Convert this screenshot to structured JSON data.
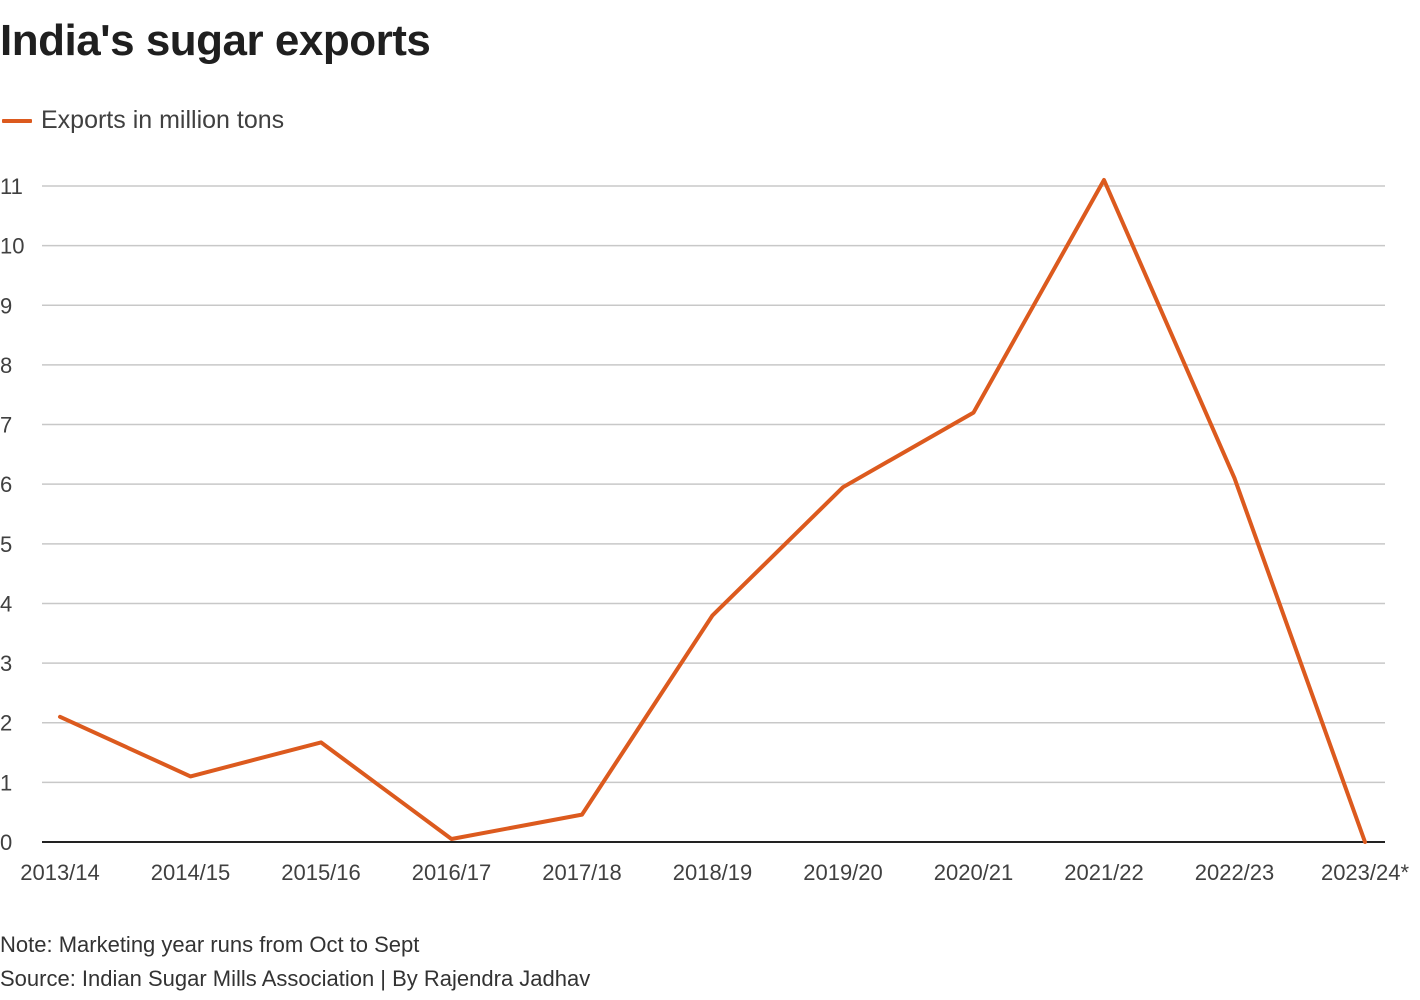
{
  "title": "India's sugar exports",
  "legend_label": "Exports in million tons",
  "colors": {
    "line": "#dc5a1e",
    "grid": "#c8c8c8",
    "axis": "#222222"
  },
  "note": "Note: Marketing year runs from Oct to Sept",
  "source": "Source: Indian Sugar Mills Association | By Rajendra Jadhav",
  "chart_data": {
    "type": "line",
    "title": "India's sugar exports",
    "xlabel": "",
    "ylabel": "",
    "legend": "top-left",
    "grid": true,
    "ylim": [
      0,
      11
    ],
    "yticks": [
      0,
      1,
      2,
      3,
      4,
      5,
      6,
      7,
      8,
      9,
      10,
      11
    ],
    "categories": [
      "2013/14",
      "2014/15",
      "2015/16",
      "2016/17",
      "2017/18",
      "2018/19",
      "2019/20",
      "2020/21",
      "2021/22",
      "2022/23",
      "2023/24*"
    ],
    "series": [
      {
        "name": "Exports in million tons",
        "values": [
          2.1,
          1.1,
          1.67,
          0.05,
          0.46,
          3.8,
          5.95,
          7.2,
          11.1,
          6.1,
          0
        ]
      }
    ]
  }
}
